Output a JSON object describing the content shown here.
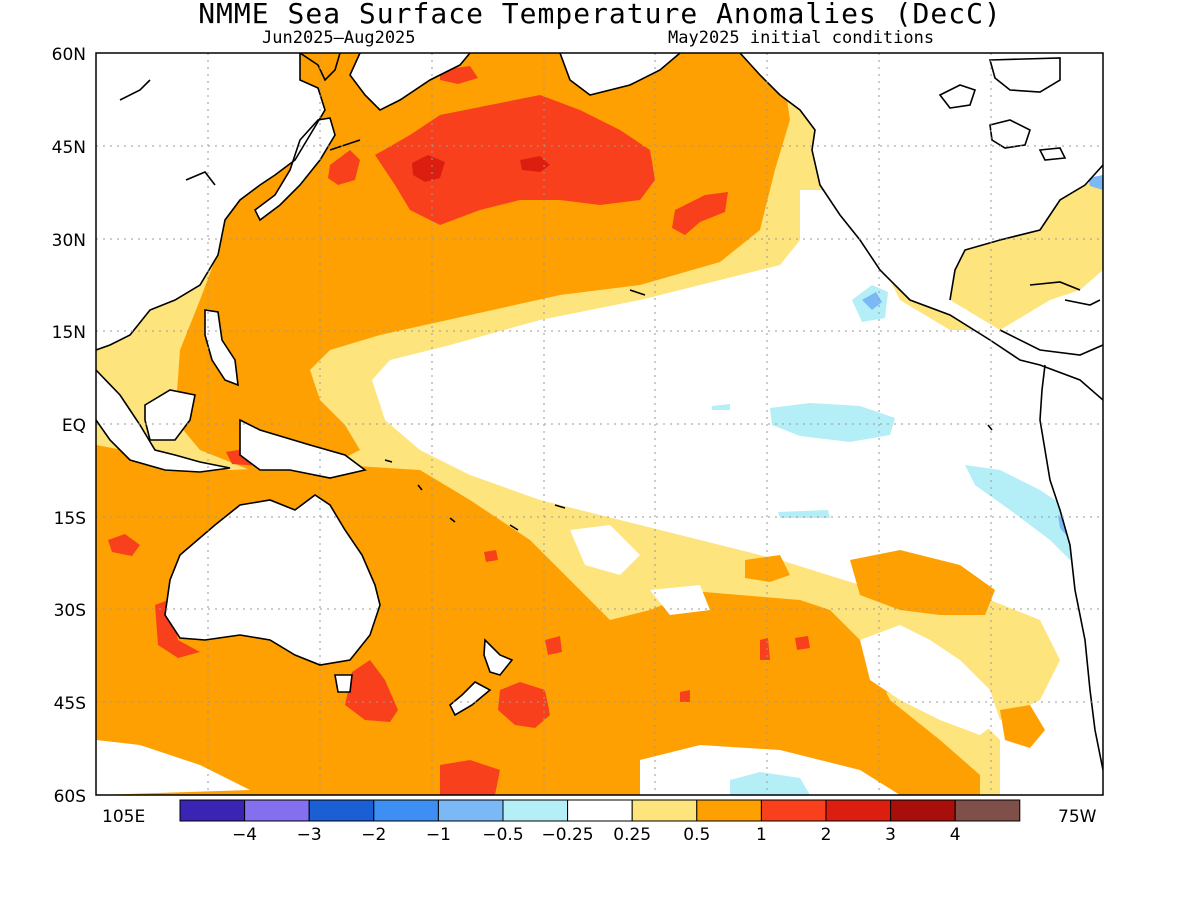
{
  "title": "NMME Sea Surface Temperature Anomalies (DecC)",
  "subtitle_left": "Jun2025—Aug2025",
  "subtitle_right": "May2025 initial conditions",
  "lat_labels": [
    "60N",
    "45N",
    "30N",
    "15N",
    "EQ",
    "15S",
    "30S",
    "45S",
    "60S"
  ],
  "lon_labels": {
    "west_edge": "105E",
    "east_edge": "75W"
  },
  "colorbar": {
    "colors": [
      "#3a24b4",
      "#8470ee",
      "#1a5fd4",
      "#3d8ff3",
      "#7ab9f6",
      "#b4eef6",
      "#ffffff",
      "#fde47c",
      "#fea002",
      "#f8411c",
      "#dc1e10",
      "#a80f0a",
      "#7f5049"
    ],
    "labels": [
      "−4",
      "−3",
      "−2",
      "−1",
      "−0.5",
      "−0.25",
      "0.25",
      "0.5",
      "1",
      "2",
      "3",
      "4"
    ]
  },
  "colors": {
    "land_outline": "#000000",
    "grid": "#9a9a9a",
    "anomaly_05_1": "#fea002",
    "anomaly_025_05": "#fde47c",
    "anomaly_1_2": "#f8411c",
    "anomaly_2_3": "#dc1e10",
    "anomaly_neg_025": "#b4eef6",
    "anomaly_neg_05": "#7ab9f6"
  }
}
